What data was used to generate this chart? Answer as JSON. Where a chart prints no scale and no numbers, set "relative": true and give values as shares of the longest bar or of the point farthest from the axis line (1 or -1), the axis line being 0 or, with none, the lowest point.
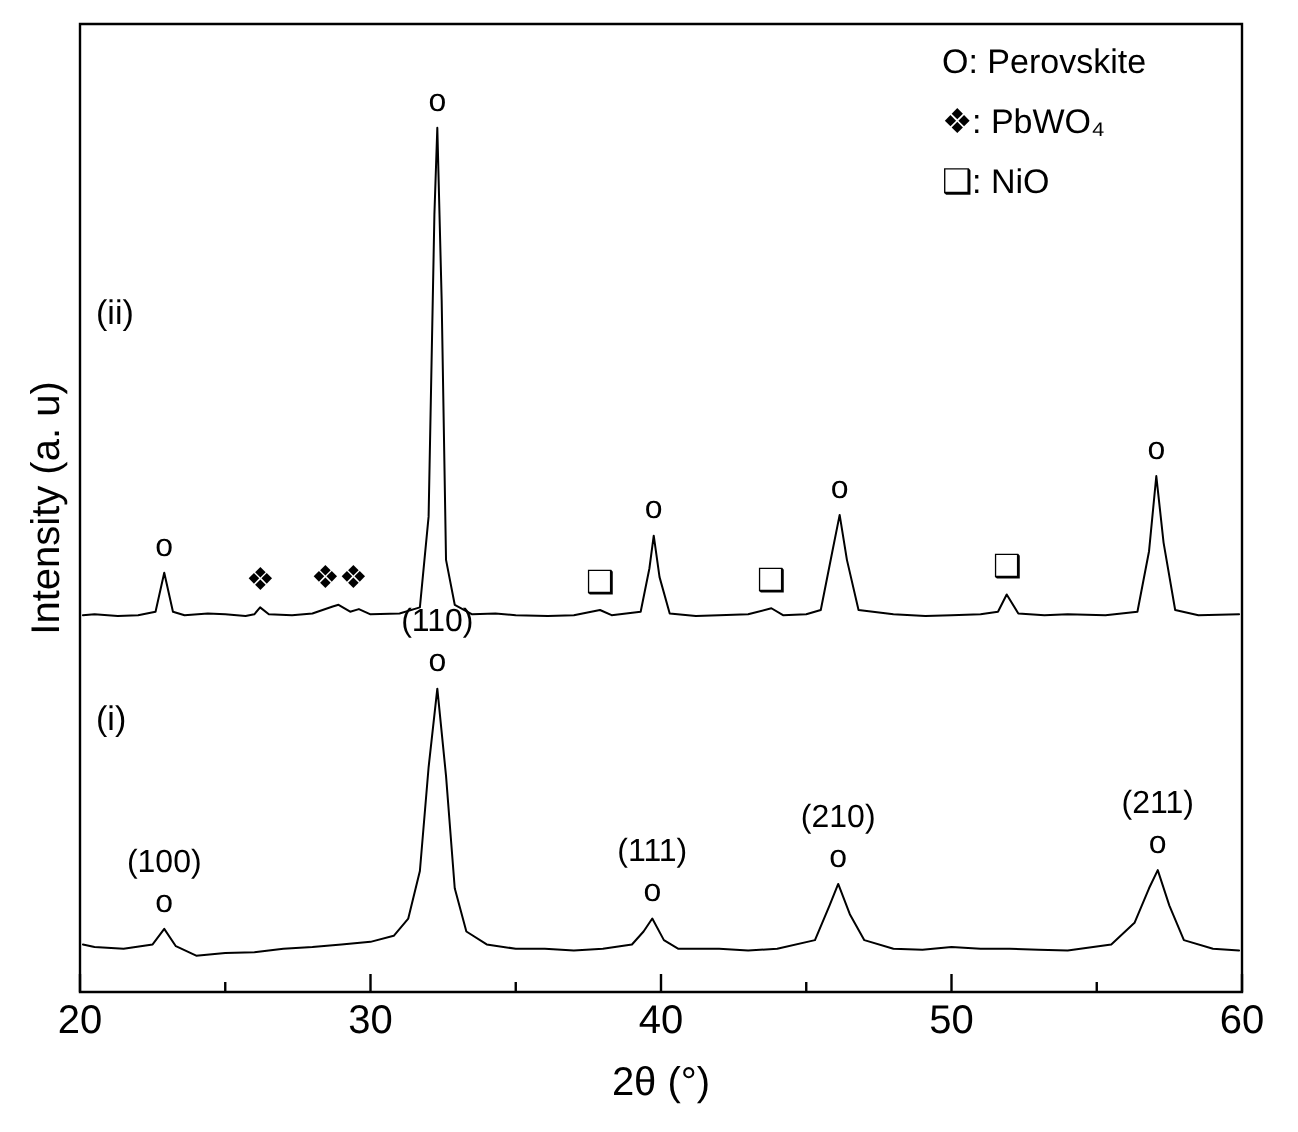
{
  "chart_data": {
    "type": "line",
    "relative": true,
    "xlabel": "2θ (°)",
    "ylabel": "Intensity (a. u)",
    "xlim": [
      20,
      60
    ],
    "xticks": [
      20,
      {
        "value": 25,
        "label": null
      },
      30,
      {
        "value": 35,
        "label": null
      },
      40,
      {
        "value": 45,
        "label": null
      },
      50,
      {
        "value": 55,
        "label": null
      },
      60
    ],
    "grid": false,
    "legend": false,
    "marker": "none",
    "line_style": "solid",
    "series": [
      {
        "color": "#000000",
        "x": [
          20.1,
          20.5,
          21.3,
          22.0,
          22.6,
          22.9,
          23.2,
          23.6,
          24.4,
          25.0,
          25.7,
          26.0,
          26.2,
          26.5,
          27.3,
          28.0,
          28.7,
          28.9,
          29.3,
          29.6,
          30.0,
          31.0,
          31.7,
          32.0,
          32.2,
          32.3,
          32.45,
          32.6,
          32.9,
          33.5,
          34.3,
          35.0,
          36.1,
          37.0,
          37.9,
          38.3,
          39.3,
          39.6,
          39.75,
          39.95,
          40.3,
          41.2,
          42.0,
          43.0,
          43.8,
          44.2,
          45.0,
          45.5,
          45.9,
          46.15,
          46.4,
          46.8,
          48.0,
          49.1,
          50.0,
          51.0,
          51.6,
          51.9,
          52.3,
          53.2,
          54.0,
          55.3,
          56.4,
          56.8,
          57.05,
          57.3,
          57.7,
          58.5,
          59.9
        ],
        "values": [
          0.436,
          0.437,
          0.435,
          0.436,
          0.44,
          0.485,
          0.44,
          0.436,
          0.438,
          0.437,
          0.435,
          0.437,
          0.445,
          0.437,
          0.436,
          0.438,
          0.446,
          0.448,
          0.44,
          0.443,
          0.437,
          0.438,
          0.445,
          0.55,
          0.9,
          1.0,
          0.8,
          0.5,
          0.448,
          0.437,
          0.438,
          0.436,
          0.435,
          0.436,
          0.442,
          0.436,
          0.44,
          0.49,
          0.528,
          0.48,
          0.438,
          0.435,
          0.436,
          0.437,
          0.444,
          0.436,
          0.437,
          0.442,
          0.51,
          0.552,
          0.5,
          0.442,
          0.437,
          0.435,
          0.436,
          0.437,
          0.44,
          0.46,
          0.438,
          0.436,
          0.437,
          0.436,
          0.44,
          0.51,
          0.597,
          0.52,
          0.442,
          0.436,
          0.437
        ]
      },
      {
        "color": "#000000",
        "x": [
          20.1,
          20.5,
          21.5,
          22.5,
          22.9,
          23.3,
          24.0,
          25.0,
          26.0,
          27.0,
          28.0,
          29.0,
          30.0,
          30.8,
          31.3,
          31.7,
          32.0,
          32.3,
          32.6,
          32.9,
          33.3,
          34.0,
          35.0,
          36.0,
          37.0,
          38.0,
          39.0,
          39.4,
          39.7,
          40.1,
          40.6,
          42.0,
          43.0,
          44.0,
          45.3,
          45.8,
          46.1,
          46.5,
          47.0,
          48.0,
          49.0,
          50.0,
          51.0,
          52.0,
          53.0,
          54.0,
          55.5,
          56.3,
          56.8,
          57.1,
          57.5,
          58.0,
          59.0,
          59.9
        ],
        "values": [
          0.055,
          0.052,
          0.05,
          0.055,
          0.073,
          0.053,
          0.042,
          0.045,
          0.046,
          0.05,
          0.052,
          0.055,
          0.058,
          0.065,
          0.085,
          0.14,
          0.26,
          0.351,
          0.25,
          0.12,
          0.07,
          0.055,
          0.05,
          0.05,
          0.048,
          0.05,
          0.055,
          0.07,
          0.085,
          0.06,
          0.05,
          0.05,
          0.048,
          0.05,
          0.06,
          0.1,
          0.125,
          0.09,
          0.06,
          0.05,
          0.049,
          0.052,
          0.05,
          0.05,
          0.049,
          0.048,
          0.055,
          0.08,
          0.12,
          0.141,
          0.1,
          0.06,
          0.05,
          0.048
        ]
      }
    ],
    "annotations": [
      "O: Perovskite",
      "❖: PbWO₄",
      "❑: NiO",
      "(ii)",
      "(i)",
      {
        "text": "o",
        "x": 22.9,
        "y": 0.485
      },
      {
        "text": "o",
        "x": 32.3,
        "y": 1.0
      },
      {
        "text": "o",
        "x": 39.75,
        "y": 0.528
      },
      {
        "text": "o",
        "x": 46.15,
        "y": 0.552
      },
      {
        "text": "o",
        "x": 57.05,
        "y": 0.597
      },
      {
        "text": "❖",
        "x": 26.2,
        "y": 0.445
      },
      {
        "text": "❖❖",
        "x": 28.9,
        "y": 0.448
      },
      {
        "text": "❑",
        "x": 37.9,
        "y": 0.442
      },
      {
        "text": "❑",
        "x": 43.8,
        "y": 0.444
      },
      {
        "text": "❑",
        "x": 51.9,
        "y": 0.46
      },
      {
        "text": "o",
        "x": 22.9,
        "y": 0.073
      },
      {
        "text": "(100)",
        "x": 22.9,
        "y": 0.073
      },
      {
        "text": "o",
        "x": 32.3,
        "y": 0.351
      },
      {
        "text": "(110)",
        "x": 32.3,
        "y": 0.351
      },
      {
        "text": "o",
        "x": 39.7,
        "y": 0.085
      },
      {
        "text": "(111)",
        "x": 39.7,
        "y": 0.085
      },
      {
        "text": "o",
        "x": 46.1,
        "y": 0.125
      },
      {
        "text": "(210)",
        "x": 46.1,
        "y": 0.125
      },
      {
        "text": "o",
        "x": 57.1,
        "y": 0.141
      },
      {
        "text": "(211)",
        "x": 57.1,
        "y": 0.141
      }
    ]
  }
}
